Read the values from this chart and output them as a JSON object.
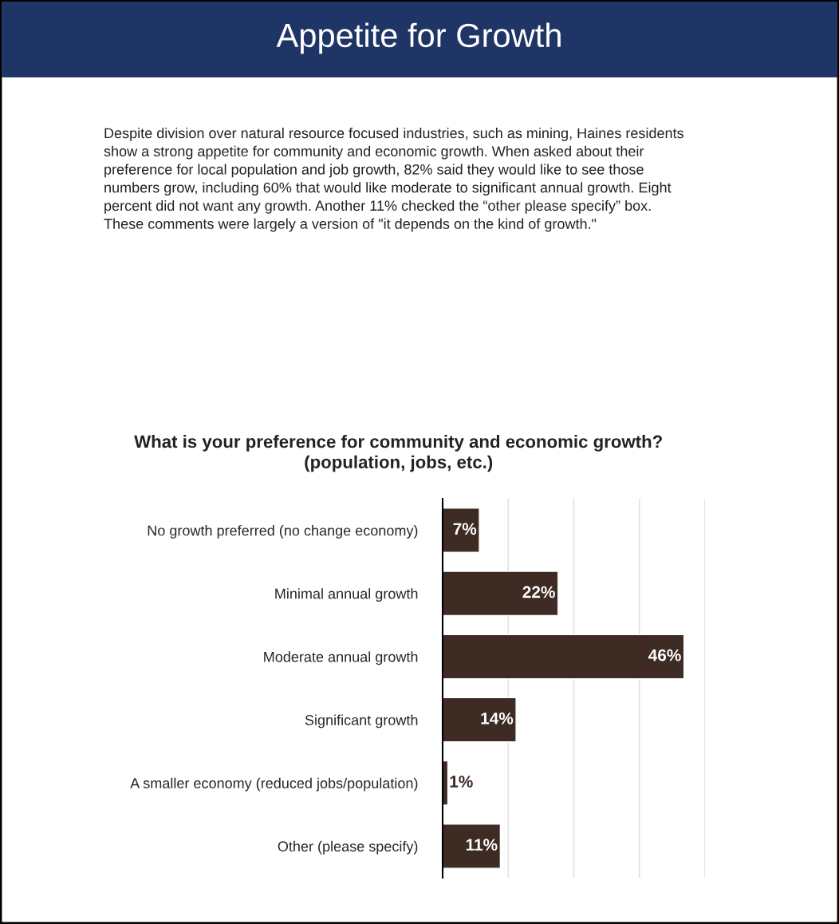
{
  "chart_data": {
    "type": "bar",
    "orientation": "horizontal",
    "title": "Appetite for Growth",
    "subtitle": "What is your preference for community and economic growth?\n(population, jobs, etc.)",
    "annotations": [
      "Despite division over natural resource focused industries, such as mining, Haines residents\nshow a strong appetite for community and economic growth. When asked about their\npreference for local population and job growth, 82% said they would like to see those\nnumbers grow, including 60% that would like moderate to significant annual growth. Eight\npercent did not want any growth. Another 11% checked the “other please specify” box.\nThese comments were largely a version of \"it depends on the kind of growth.\""
    ],
    "categories": [
      "No growth preferred (no change economy)",
      "Minimal annual growth",
      "Moderate annual growth",
      "Significant growth",
      "A smaller economy (reduced jobs/population)",
      "Other (please specify)"
    ],
    "values": [
      7,
      22,
      46,
      14,
      1,
      11
    ],
    "value_labels": [
      "7%",
      "22%",
      "46%",
      "14%",
      "1%",
      "11%"
    ],
    "color": "#3d2b24",
    "xlim": [
      0,
      50
    ],
    "xticks": [
      {
        "value": 0,
        "label": null
      },
      {
        "value": 12.5,
        "label": null
      },
      {
        "value": 25,
        "label": null
      },
      {
        "value": 37.5,
        "label": null
      },
      {
        "value": 50,
        "label": null
      }
    ],
    "grid": "x",
    "tick_labels": "y",
    "legend": false
  }
}
